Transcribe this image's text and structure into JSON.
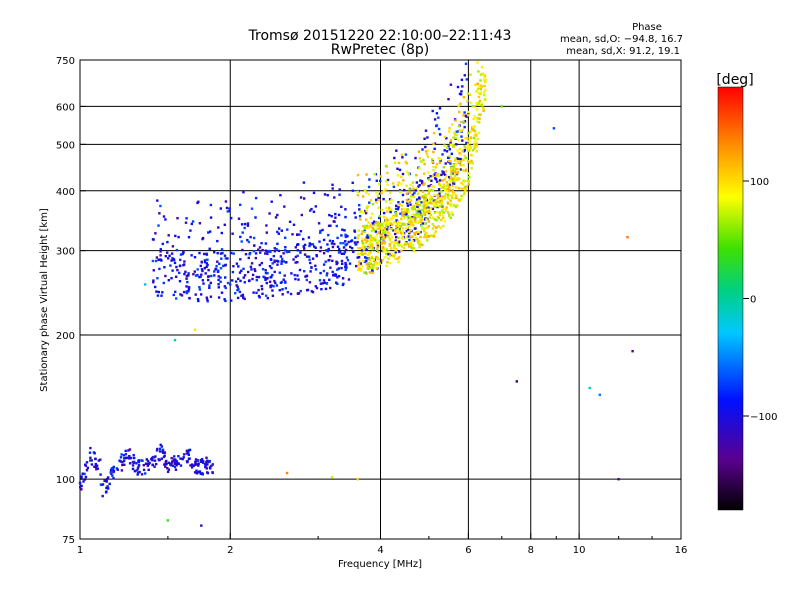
{
  "header": {
    "title_line1": "Tromsø 20151220 22:10:00–22:11:43",
    "title_line2": "RwPretec (8p)",
    "phase_title": "Phase",
    "phase_o": "mean, sd,O: −94.8, 16.7",
    "phase_x": "mean, sd,X:  91.2, 19.1"
  },
  "chart_data": {
    "type": "scatter",
    "xlabel": "Frequency [MHz]",
    "ylabel": "Stationary phase Virtual Height [km]",
    "x_scale": "log",
    "y_scale": "log",
    "xlim": [
      1,
      16
    ],
    "ylim": [
      75,
      750
    ],
    "x_ticks": [
      1,
      2,
      4,
      6,
      8,
      10,
      16
    ],
    "x_tick_labels": [
      "1",
      "2",
      "4",
      "6",
      "8",
      "10",
      "16"
    ],
    "y_ticks": [
      75,
      100,
      200,
      300,
      400,
      500,
      600,
      750
    ],
    "y_tick_labels": [
      "75",
      "100",
      "200",
      "300",
      "400",
      "500",
      "600",
      "750"
    ],
    "x_grid": [
      2,
      4,
      6,
      8,
      10
    ],
    "y_grid": [
      100,
      200,
      300,
      400,
      500,
      600
    ],
    "colorbar": {
      "label": "[deg]",
      "range": [
        -180,
        180
      ],
      "ticks": [
        100,
        0,
        -100
      ],
      "tick_labels": [
        "100",
        "0",
        "−100"
      ]
    },
    "colors": {
      "o_trace": "#1a3cff",
      "x_trace": "#ffee00",
      "mixed": "#ff8800"
    },
    "series": [
      {
        "trace": "E-layer echoes",
        "phase_deg": -100,
        "freq_range_mhz": [
          1.0,
          1.85
        ],
        "height_km": [
          [
            1.0,
            104
          ],
          [
            1.1,
            106
          ],
          [
            1.2,
            107
          ],
          [
            1.3,
            106
          ],
          [
            1.4,
            108
          ],
          [
            1.5,
            107
          ],
          [
            1.6,
            108
          ],
          [
            1.7,
            106
          ],
          [
            1.8,
            107
          ],
          [
            1.05,
            112
          ],
          [
            1.25,
            113
          ],
          [
            1.45,
            114
          ],
          [
            1.65,
            113
          ],
          [
            1.0,
            95
          ],
          [
            1.1,
            94
          ]
        ]
      },
      {
        "trace": "F-layer O-mode",
        "phase_deg": -95,
        "freq_range_mhz": [
          1.4,
          6.0
        ],
        "height_km": [
          [
            1.4,
            270
          ],
          [
            1.6,
            270
          ],
          [
            1.8,
            265
          ],
          [
            2.0,
            268
          ],
          [
            2.3,
            270
          ],
          [
            2.6,
            275
          ],
          [
            3.0,
            280
          ],
          [
            3.4,
            290
          ],
          [
            3.8,
            305
          ],
          [
            4.2,
            325
          ],
          [
            4.6,
            350
          ],
          [
            5.0,
            385
          ],
          [
            5.4,
            430
          ],
          [
            5.8,
            500
          ],
          [
            6.0,
            560
          ]
        ]
      },
      {
        "trace": "F-layer X-mode",
        "phase_deg": 91,
        "freq_range_mhz": [
          3.6,
          6.5
        ],
        "height_km": [
          [
            3.6,
            300
          ],
          [
            4.0,
            310
          ],
          [
            4.4,
            325
          ],
          [
            4.8,
            345
          ],
          [
            5.2,
            370
          ],
          [
            5.6,
            405
          ],
          [
            6.0,
            460
          ],
          [
            6.2,
            520
          ],
          [
            6.3,
            590
          ],
          [
            6.4,
            640
          ]
        ]
      }
    ]
  }
}
